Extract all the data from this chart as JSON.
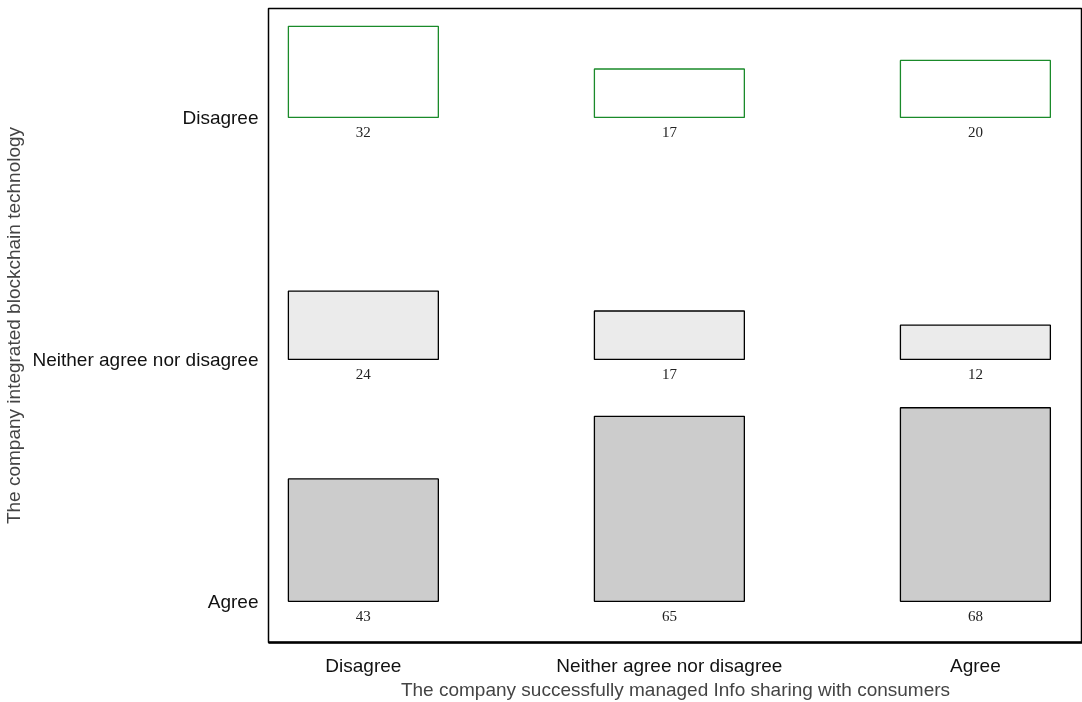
{
  "chart_data": {
    "type": "heatmap",
    "xlabel": "The company successfully managed Info sharing with consumers",
    "ylabel": "The company integrated blockchain technology",
    "categories": [
      "Disagree",
      "Neither agree nor disagree",
      "Agree"
    ],
    "y_categories": [
      "Disagree",
      "Neither agree nor disagree",
      "Agree"
    ],
    "cells": [
      [
        32,
        17,
        20
      ],
      [
        24,
        17,
        12
      ],
      [
        43,
        65,
        68
      ]
    ],
    "colors": [
      "#ffffff",
      "#ebebeb",
      "#cccccc"
    ],
    "data_labels": true,
    "grid": false
  }
}
